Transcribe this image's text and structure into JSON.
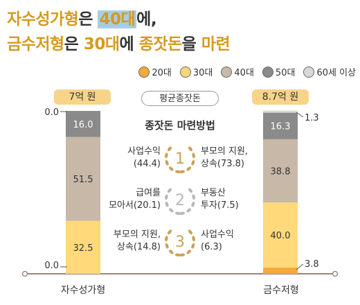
{
  "title": {
    "line1": {
      "p1": "자수성가형",
      "p2": "은 ",
      "p3": "40대",
      "p4": "에,"
    },
    "line2": {
      "p1": "금수저형",
      "p2": "은 ",
      "p3": "30대",
      "p4": "에 ",
      "p5": "종잣돈",
      "p6": "을 ",
      "p7": "마련"
    }
  },
  "legend": [
    {
      "label": "20대",
      "color": "#f4a93b",
      "icon": "face-20s-icon"
    },
    {
      "label": "30대",
      "color": "#f7d77e",
      "icon": "face-30s-icon"
    },
    {
      "label": "40대",
      "color": "#c8b8a8",
      "icon": "face-40s-icon"
    },
    {
      "label": "50대",
      "color": "#8a8a8a",
      "icon": "face-50s-icon"
    },
    {
      "label": "60세 이상",
      "color": "#d8d8d8",
      "icon": "face-60s-icon"
    }
  ],
  "center": {
    "pill": "평균종잣돈",
    "heading": "종잣돈 마련방법",
    "ranks": [
      {
        "num": "1",
        "left": [
          "사업수익",
          "(44.4)"
        ],
        "right": [
          "부모의 지원,",
          "상속(73.8)"
        ],
        "medal": "#c9a25a"
      },
      {
        "num": "2",
        "left": [
          "급여를",
          "모아서(20.1)"
        ],
        "right": [
          "부동산",
          "투자(7.5)"
        ],
        "medal": "#b8b8b8"
      },
      {
        "num": "3",
        "left": [
          "부모의 지원,",
          "상속(14.8)"
        ],
        "right": [
          "사업수익",
          "(6.3)"
        ],
        "medal": "#c9a25a"
      }
    ]
  },
  "chart_data": {
    "type": "bar",
    "stacked": true,
    "unit": "%",
    "categories": [
      "자수성가형",
      "금수저형"
    ],
    "totals": [
      "7억 원",
      "8.7억 원"
    ],
    "series": [
      {
        "name": "20대",
        "color": "#f4a93b",
        "values": [
          0.0,
          3.8
        ]
      },
      {
        "name": "30대",
        "color": "#ffd97a",
        "values": [
          32.5,
          40.0
        ]
      },
      {
        "name": "40대",
        "color": "#c8b8a8",
        "values": [
          51.5,
          38.8
        ]
      },
      {
        "name": "50대",
        "color": "#8a8a8a",
        "values": [
          16.0,
          16.3
        ]
      },
      {
        "name": "60세 이상",
        "color": "#d8d8d8",
        "values": [
          0.0,
          1.3
        ]
      }
    ],
    "ylim": [
      0,
      100
    ]
  }
}
